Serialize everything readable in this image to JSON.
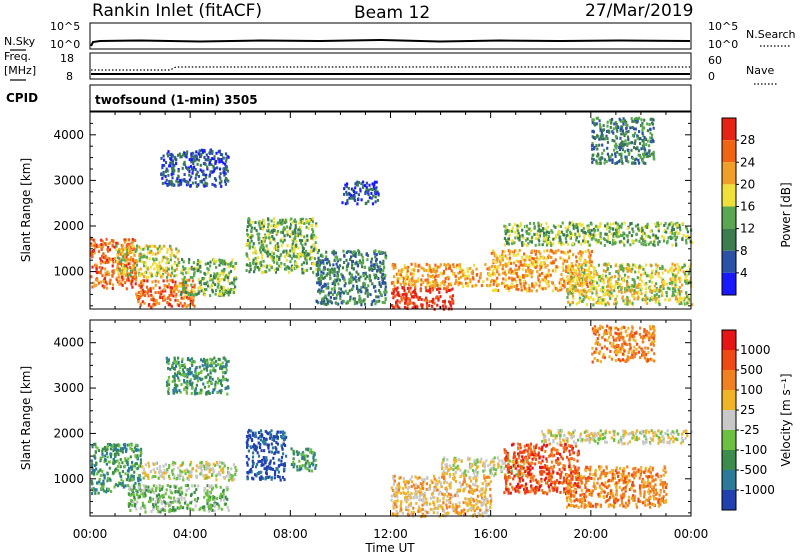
{
  "header": {
    "site": "Rankin Inlet (fitACF)",
    "beam": "Beam 12",
    "date": "27/Mar/2019"
  },
  "noise_panel": {
    "left_label": "N.Sky",
    "right_label": "N.Search",
    "left_ticks": [
      "10^5",
      "10^0"
    ],
    "right_ticks": [
      "10^5",
      "10^0"
    ]
  },
  "freq_panel": {
    "left_label_1": "Freq.",
    "left_label_2": "[MHz]",
    "right_label": "Nave",
    "left_ticks": [
      "18",
      "8"
    ],
    "right_ticks": [
      "60",
      "0"
    ]
  },
  "cpid_panel": {
    "label": "CPID",
    "mode": "twofsound (1-min) 3505"
  },
  "chart_data": [
    {
      "type": "heatmap",
      "name": "power",
      "xlabel": "Time UT",
      "ylabel": "Slant Range [km]",
      "xlim_hours": [
        0,
        24
      ],
      "ylim_km": [
        180,
        4500
      ],
      "y_ticks": [
        "1000",
        "2000",
        "3000",
        "4000"
      ],
      "x_ticks": [
        "00:00",
        "04:00",
        "08:00",
        "12:00",
        "16:00",
        "20:00",
        "00:00"
      ],
      "colorbar": {
        "label": "Power [dB]",
        "ticks": [
          "4",
          "8",
          "12",
          "16",
          "20",
          "24",
          "28"
        ],
        "colors": [
          "#1919ff",
          "#2a52a6",
          "#3c7d4e",
          "#59a84f",
          "#f0e03c",
          "#f0a028",
          "#f06414",
          "#e62314"
        ]
      },
      "regions": [
        {
          "t0": 0.0,
          "t1": 1.8,
          "r0": 650,
          "r1": 1750,
          "level": 6
        },
        {
          "t0": 1.8,
          "t1": 4.2,
          "r0": 250,
          "r1": 850,
          "level": 6
        },
        {
          "t0": 1.0,
          "t1": 3.5,
          "r0": 900,
          "r1": 1600,
          "level": 4
        },
        {
          "t0": 3.5,
          "t1": 5.8,
          "r0": 500,
          "r1": 1300,
          "level": 3
        },
        {
          "t0": 2.8,
          "t1": 5.5,
          "r0": 2900,
          "r1": 3700,
          "level": 1
        },
        {
          "t0": 6.2,
          "t1": 9.0,
          "r0": 1000,
          "r1": 2200,
          "level": 3
        },
        {
          "t0": 9.0,
          "t1": 11.8,
          "r0": 300,
          "r1": 1500,
          "level": 2
        },
        {
          "t0": 10.0,
          "t1": 11.5,
          "r0": 2500,
          "r1": 3000,
          "level": 1
        },
        {
          "t0": 12.0,
          "t1": 14.5,
          "r0": 200,
          "r1": 700,
          "level": 7
        },
        {
          "t0": 12.0,
          "t1": 16.0,
          "r0": 700,
          "r1": 1200,
          "level": 5
        },
        {
          "t0": 16.0,
          "t1": 20.0,
          "r0": 600,
          "r1": 1500,
          "level": 5
        },
        {
          "t0": 16.5,
          "t1": 24.0,
          "r0": 1600,
          "r1": 2100,
          "level": 3
        },
        {
          "t0": 19.0,
          "t1": 24.0,
          "r0": 300,
          "r1": 1200,
          "level": 4
        },
        {
          "t0": 20.0,
          "t1": 22.5,
          "r0": 3400,
          "r1": 4400,
          "level": 2
        }
      ]
    },
    {
      "type": "heatmap",
      "name": "velocity",
      "xlabel": "Time UT",
      "ylabel": "Slant Range [km]",
      "xlim_hours": [
        0,
        24
      ],
      "ylim_km": [
        180,
        4500
      ],
      "y_ticks": [
        "1000",
        "2000",
        "3000",
        "4000"
      ],
      "x_ticks": [
        "00:00",
        "04:00",
        "08:00",
        "12:00",
        "16:00",
        "20:00",
        "00:00"
      ],
      "colorbar": {
        "label": "Velocity [m s⁻¹]",
        "ticks": [
          "1000",
          "500",
          "100",
          "25",
          "-25",
          "-100",
          "-500",
          "-1000"
        ],
        "colors": [
          "#2040b0",
          "#2a7a9a",
          "#3c8c4e",
          "#6cc040",
          "#c8c8c8",
          "#f0b428",
          "#f08020",
          "#f04a14",
          "#e61414"
        ]
      },
      "regions": [
        {
          "t0": 0.0,
          "t1": 2.0,
          "r0": 700,
          "r1": 1800,
          "level": 2
        },
        {
          "t0": 1.5,
          "t1": 5.5,
          "r0": 300,
          "r1": 900,
          "level": 3
        },
        {
          "t0": 2.0,
          "t1": 5.8,
          "r0": 1000,
          "r1": 1400,
          "level": 4
        },
        {
          "t0": 3.0,
          "t1": 5.5,
          "r0": 2900,
          "r1": 3700,
          "level": 2
        },
        {
          "t0": 6.2,
          "t1": 7.8,
          "r0": 1000,
          "r1": 2100,
          "level": 0
        },
        {
          "t0": 8.0,
          "t1": 9.0,
          "r0": 1200,
          "r1": 1700,
          "level": 2
        },
        {
          "t0": 12.0,
          "t1": 16.0,
          "r0": 200,
          "r1": 1100,
          "level": 5
        },
        {
          "t0": 14.0,
          "t1": 17.5,
          "r0": 1100,
          "r1": 1500,
          "level": 4
        },
        {
          "t0": 16.5,
          "t1": 19.5,
          "r0": 700,
          "r1": 1800,
          "level": 7
        },
        {
          "t0": 19.0,
          "t1": 23.0,
          "r0": 400,
          "r1": 1300,
          "level": 6
        },
        {
          "t0": 18.0,
          "t1": 24.0,
          "r0": 1800,
          "r1": 2100,
          "level": 4
        },
        {
          "t0": 20.0,
          "t1": 22.5,
          "r0": 3600,
          "r1": 4400,
          "level": 6
        }
      ]
    }
  ]
}
